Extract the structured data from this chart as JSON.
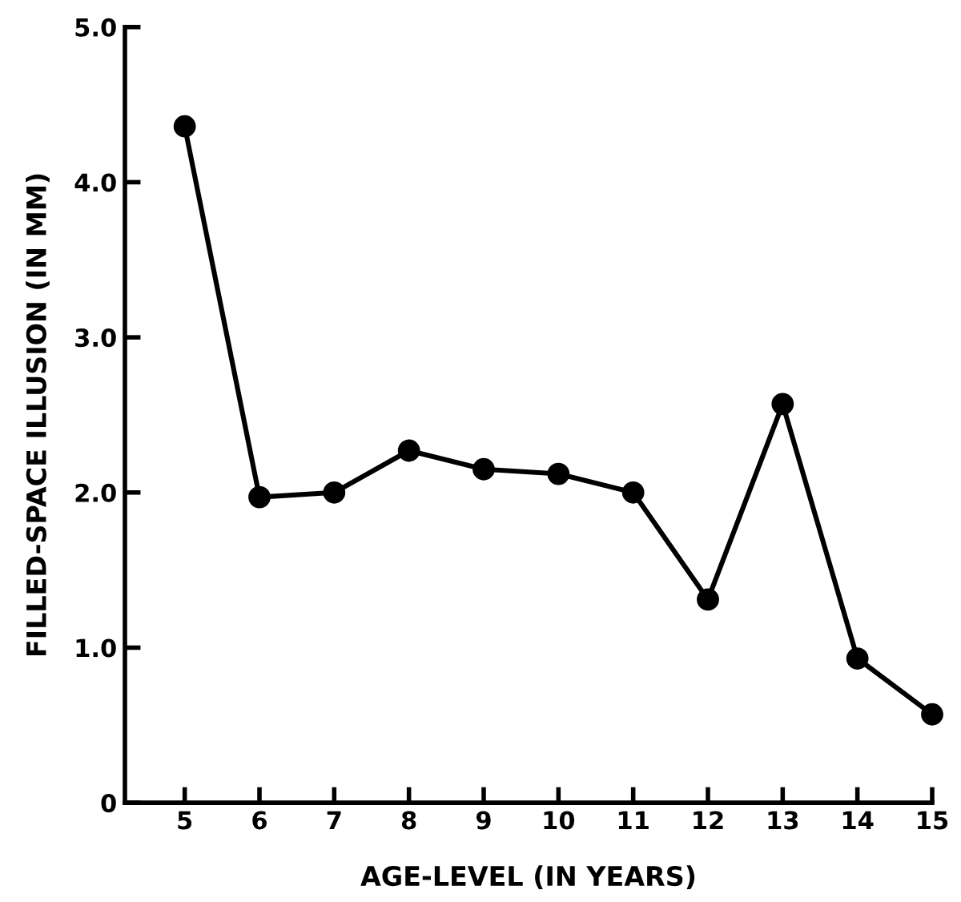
{
  "chart_data": {
    "type": "line",
    "xlabel": "AGE-LEVEL (IN YEARS)",
    "ylabel": "FILLED-SPACE ILLUSION (IN MM)",
    "x": [
      5,
      6,
      7,
      8,
      9,
      10,
      11,
      12,
      13,
      14,
      15
    ],
    "series": [
      {
        "color": "#000000",
        "values": [
          4.36,
          1.97,
          2.0,
          2.27,
          2.15,
          2.12,
          2.0,
          1.31,
          2.57,
          0.93,
          0.57
        ]
      }
    ],
    "xlim": [
      4.2,
      15
    ],
    "xticks": [
      5,
      6,
      7,
      8,
      9,
      10,
      11,
      12,
      13,
      14,
      15
    ],
    "ylim": [
      0,
      5
    ],
    "yticks": [
      {
        "value": 0,
        "label": "0"
      },
      {
        "value": 1,
        "label": "1.0"
      },
      {
        "value": 2,
        "label": "2.0"
      },
      {
        "value": 3,
        "label": "3.0"
      },
      {
        "value": 4,
        "label": "4.0"
      },
      {
        "value": 5,
        "label": "5.0"
      }
    ],
    "marker": "circle",
    "line_style": "solid",
    "grid": false,
    "legend": false
  }
}
